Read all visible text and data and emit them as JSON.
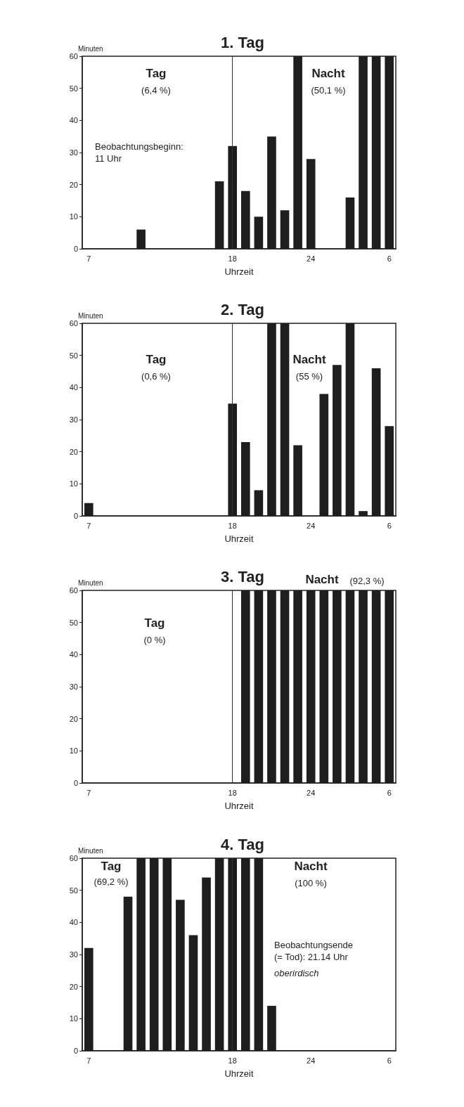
{
  "chart_data": [
    {
      "type": "bar",
      "title": "1. Tag",
      "xlabel": "Uhrzeit",
      "ylabel": "Minuten",
      "categories": [
        "7",
        null,
        null,
        null,
        null,
        null,
        null,
        null,
        null,
        null,
        null,
        "18",
        null,
        null,
        null,
        null,
        null,
        "24",
        null,
        null,
        null,
        null,
        null,
        "6"
      ],
      "values": [
        0,
        0,
        0,
        0,
        6,
        0,
        0,
        0,
        0,
        0,
        21,
        32,
        18,
        10,
        35,
        12,
        60,
        28,
        0,
        0,
        16,
        60,
        60,
        60
      ],
      "color": "#1e1e1e",
      "ylim": [
        0,
        60
      ],
      "yticks": [
        0,
        10,
        20,
        30,
        40,
        50,
        60
      ],
      "ref_lines": [
        {
          "axis": "x",
          "value": "18",
          "color": "#333333"
        }
      ],
      "annotations": [
        "Tag",
        "(6,4 %)",
        "Nacht",
        "(50,1 %)",
        "Beobachtungsbeginn:\n11 Uhr"
      ]
    },
    {
      "type": "bar",
      "title": "2. Tag",
      "xlabel": "Uhrzeit",
      "ylabel": "Minuten",
      "categories": [
        "7",
        null,
        null,
        null,
        null,
        null,
        null,
        null,
        null,
        null,
        null,
        "18",
        null,
        null,
        null,
        null,
        null,
        "24",
        null,
        null,
        null,
        null,
        null,
        "6"
      ],
      "values": [
        4,
        0,
        0,
        0,
        0,
        0,
        0,
        0,
        0,
        0,
        0,
        35,
        23,
        8,
        60,
        60,
        22,
        0,
        38,
        47,
        60,
        1.5,
        46,
        28
      ],
      "color": "#1e1e1e",
      "ylim": [
        0,
        60
      ],
      "yticks": [
        0,
        10,
        20,
        30,
        40,
        50,
        60
      ],
      "ref_lines": [
        {
          "axis": "x",
          "value": "18",
          "color": "#333333"
        }
      ],
      "annotations": [
        "Tag",
        "(0,6 %)",
        "Nacht",
        "(55 %)"
      ]
    },
    {
      "type": "bar",
      "title": "3. Tag",
      "xlabel": "Uhrzeit",
      "ylabel": "Minuten",
      "categories": [
        "7",
        null,
        null,
        null,
        null,
        null,
        null,
        null,
        null,
        null,
        null,
        "18",
        null,
        null,
        null,
        null,
        null,
        "24",
        null,
        null,
        null,
        null,
        null,
        "6"
      ],
      "values": [
        0,
        0,
        0,
        0,
        0,
        0,
        0,
        0,
        0,
        0,
        0,
        0,
        60,
        60,
        60,
        60,
        60,
        60,
        60,
        60,
        60,
        60,
        60,
        60
      ],
      "color": "#1e1e1e",
      "ylim": [
        0,
        60
      ],
      "yticks": [
        0,
        10,
        20,
        30,
        40,
        50,
        60
      ],
      "ref_lines": [
        {
          "axis": "x",
          "value": "18",
          "color": "#333333"
        }
      ],
      "annotations": [
        "Tag",
        "(0 %)",
        "Nacht",
        "(92,3 %)"
      ]
    },
    {
      "type": "bar",
      "title": "4. Tag",
      "xlabel": "Uhrzeit",
      "ylabel": "Minuten",
      "categories": [
        "7",
        null,
        null,
        null,
        null,
        null,
        null,
        null,
        null,
        null,
        null,
        "18",
        null,
        null,
        null,
        null,
        null,
        "24",
        null,
        null,
        null,
        null,
        null,
        "6"
      ],
      "values": [
        32,
        0,
        0,
        48,
        60,
        60,
        60,
        47,
        36,
        54,
        60,
        60,
        60,
        60,
        14,
        0,
        0,
        0,
        0,
        0,
        0,
        0,
        0,
        0
      ],
      "color": "#1e1e1e",
      "ylim": [
        0,
        60
      ],
      "yticks": [
        0,
        10,
        20,
        30,
        40,
        50,
        60
      ],
      "ref_lines": [
        {
          "axis": "x",
          "value": "18",
          "color": "#333333"
        }
      ],
      "annotations": [
        "Tag",
        "(69,2 %)",
        "Nacht",
        "(100 %)",
        "Beobachtungsende\n(= Tod): 21.14 Uhr",
        "oberirdisch"
      ]
    }
  ]
}
